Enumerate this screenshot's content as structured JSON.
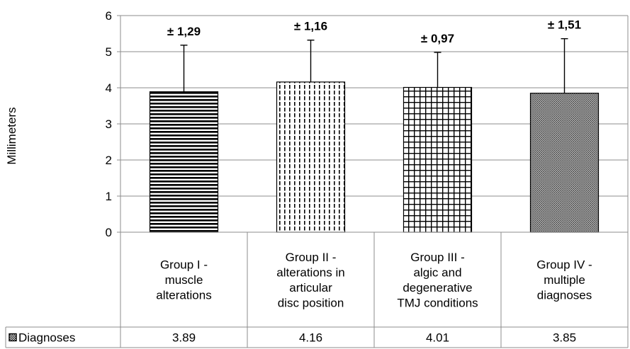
{
  "chart_data": {
    "type": "bar",
    "ylabel": "Millimeters",
    "ylim": [
      0,
      6
    ],
    "yticks": [
      0,
      1,
      2,
      3,
      4,
      5,
      6
    ],
    "grid": true,
    "categories": [
      [
        "Group I -",
        "muscle",
        "alterations"
      ],
      [
        "Group II -",
        "alterations in",
        "articular",
        "disc position"
      ],
      [
        "Group III -",
        "algic and",
        "degenerative",
        "TMJ conditions"
      ],
      [
        "Group IV -",
        "multiple",
        "diagnoses"
      ]
    ],
    "series": [
      {
        "name": "Diagnoses",
        "values": [
          3.89,
          4.16,
          4.01,
          3.85
        ],
        "value_labels": [
          "3.89",
          "4.16",
          "4.01",
          "3.85"
        ],
        "errors": [
          1.29,
          1.16,
          0.97,
          1.51
        ],
        "error_labels": [
          "± 1,29",
          "± 1,16",
          "± 0,97",
          "± 1,51"
        ]
      }
    ],
    "patterns": [
      "horizontal-lines",
      "vertical-dashes",
      "grid",
      "dots"
    ],
    "data_table": true,
    "legend": "table-row"
  }
}
